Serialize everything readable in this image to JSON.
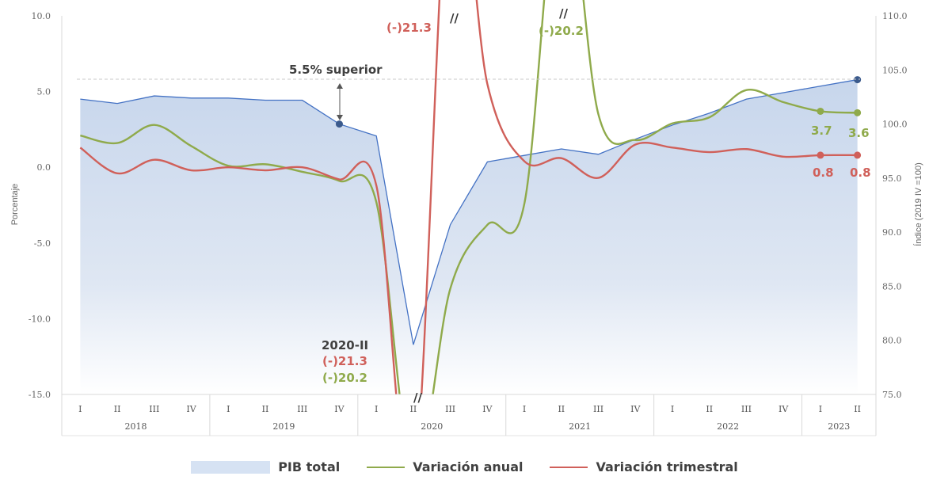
{
  "colors": {
    "pib_fill": "#cfdcef",
    "pib_line": "#4472c4",
    "anual": "#8faa4b",
    "trimestral": "#d0605a",
    "annotation_dark": "#404040"
  },
  "chart_data": {
    "type": "line",
    "title": "",
    "ylabel_left": "Porcentaje",
    "ylabel_right": "Índice (2019 IV =100)",
    "ylim_left": [
      -15,
      10
    ],
    "ylim_right": [
      75,
      110
    ],
    "yticks_left": [
      "10.0",
      "5.0",
      "0.0",
      "-5.0",
      "-10.0",
      "-15.0"
    ],
    "yticks_right": [
      "110.0",
      "105.0",
      "100.0",
      "95.0",
      "90.0",
      "85.0",
      "80.0",
      "75.0"
    ],
    "quarters": [
      "I",
      "II",
      "III",
      "IV",
      "I",
      "II",
      "III",
      "IV",
      "I",
      "II",
      "III",
      "IV",
      "I",
      "II",
      "III",
      "IV",
      "I",
      "II",
      "III",
      "IV",
      "I",
      "II"
    ],
    "years": [
      {
        "label": "2018",
        "start": 0,
        "count": 4
      },
      {
        "label": "2019",
        "start": 4,
        "count": 4
      },
      {
        "label": "2020",
        "start": 8,
        "count": 4
      },
      {
        "label": "2021",
        "start": 12,
        "count": 4
      },
      {
        "label": "2022",
        "start": 16,
        "count": 4
      },
      {
        "label": "2023",
        "start": 20,
        "count": 2
      }
    ],
    "series": [
      {
        "name": "PIB total",
        "axis": "right",
        "values": [
          102.3,
          101.9,
          102.6,
          102.4,
          102.4,
          102.2,
          102.2,
          100.0,
          98.9,
          79.6,
          90.7,
          96.5,
          97.1,
          97.7,
          97.2,
          98.6,
          99.9,
          101.0,
          102.3,
          102.9,
          103.5,
          104.1
        ]
      },
      {
        "name": "Variación anual",
        "axis": "left",
        "values": [
          2.1,
          1.6,
          2.8,
          1.4,
          0.1,
          0.2,
          -0.3,
          -0.9,
          -2.3,
          -20.2,
          -8.0,
          -3.8,
          -2.4,
          20.2,
          3.5,
          1.8,
          2.9,
          3.3,
          5.1,
          4.3,
          3.7,
          3.6
        ]
      },
      {
        "name": "Variación trimestral",
        "axis": "left",
        "values": [
          1.3,
          -0.4,
          0.5,
          -0.2,
          0.0,
          -0.2,
          0.0,
          -0.8,
          -1.2,
          -21.3,
          21.3,
          5.5,
          0.4,
          0.6,
          -0.7,
          1.5,
          1.3,
          1.0,
          1.2,
          0.7,
          0.8,
          0.8
        ]
      }
    ],
    "annotations": {
      "superior": "5.5% superior",
      "quarter_label": "2020-II",
      "trim_min": "(-)21.3",
      "anual_min": "(-)20.2",
      "trim_peak": "(-)21.3",
      "anual_peak": "(-)20.2",
      "break_mark": "//",
      "anual_last_1": "3.7",
      "anual_last_2": "3.6",
      "trim_last_1": "0.8",
      "trim_last_2": "0.8"
    },
    "legend": [
      "PIB total",
      "Variación anual",
      "Variación trimestral"
    ],
    "legend_position": "bottom"
  }
}
